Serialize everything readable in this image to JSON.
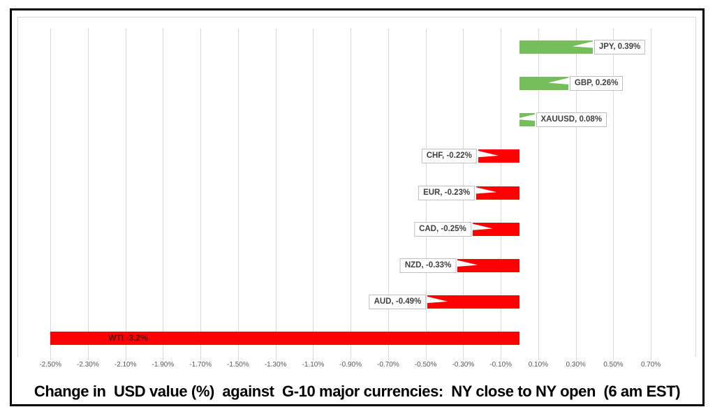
{
  "title": "Change in  USD value (%)  against  G-10 major currencies:  NY close to NY open  (6 am EST)",
  "chart_data": {
    "type": "bar",
    "orientation": "horizontal",
    "title": "Change in  USD value (%)  against  G-10 major currencies:  NY close to NY open  (6 am EST)",
    "categories": [
      "JPY",
      "GBP",
      "XAUUSD",
      "CHF",
      "EUR",
      "CAD",
      "NZD",
      "AUD",
      "WTI"
    ],
    "values": [
      0.39,
      0.26,
      0.08,
      -0.22,
      -0.23,
      -0.25,
      -0.33,
      -0.49,
      -3.2
    ],
    "bar_labels": [
      "JPY, 0.39%",
      "GBP, 0.26%",
      "XAUUSD, 0.08%",
      "CHF, -0.22%",
      "EUR, -0.23%",
      "CAD, -0.25%",
      "NZD, -0.33%",
      "AUD, -0.49%",
      "WTI  -3.2%"
    ],
    "label_position": [
      "callout",
      "callout",
      "callout",
      "callout",
      "callout",
      "callout",
      "callout",
      "callout",
      "inside"
    ],
    "x_tick_labels": [
      "-2.50%",
      "-2.30%",
      "-2.10%",
      "-1.90%",
      "-1.70%",
      "-1.50%",
      "-1.30%",
      "-1.10%",
      "-0.90%",
      "-0.70%",
      "-0.50%",
      "-0.30%",
      "-0.10%",
      "0.10%",
      "0.30%",
      "0.50%",
      "0.70%"
    ],
    "x_tick_values": [
      -2.5,
      -2.3,
      -2.1,
      -1.9,
      -1.7,
      -1.5,
      -1.3,
      -1.1,
      -0.9,
      -0.7,
      -0.5,
      -0.3,
      -0.1,
      0.1,
      0.3,
      0.5,
      0.7
    ],
    "xlim": [
      -2.5,
      0.94
    ],
    "grid": true,
    "legend": false,
    "colors": {
      "positive": "#76BE5C",
      "negative": "#FF0000",
      "gridline": "#D9D9D9",
      "axis_label": "#595959",
      "callout_border": "#BFBFBF",
      "callout_text": "#404040",
      "inside_label": "#550E0E",
      "frame": "#000000"
    }
  }
}
